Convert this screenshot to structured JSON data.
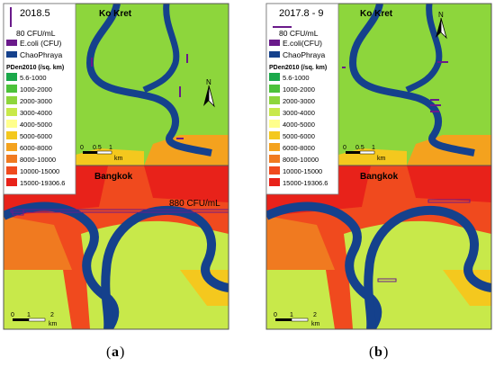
{
  "colors": {
    "c1": "#1aa84a",
    "c2": "#4cc23a",
    "c3": "#8dd63c",
    "c4": "#c8e94a",
    "c5": "#ffff8c",
    "c6": "#f4c81e",
    "c7": "#f4a21e",
    "c8": "#f07a20",
    "c9": "#f04a1e",
    "c10": "#e8221a",
    "river": "#15418c",
    "ecoli": "#6a1a8a"
  },
  "panels": [
    {
      "id": "a",
      "period": "2018.5",
      "scale_label": "80 CFU/mL",
      "legend_ecoli": "E.coli (CFU)",
      "legend_river": "ChaoPhraya",
      "legend_density_title": "PDen2010 (/sq. km)",
      "density_classes": [
        "5.6-1000",
        "1000-2000",
        "2000-3000",
        "3000-4000",
        "4000-5000",
        "5000-6000",
        "6000-8000",
        "8000-10000",
        "10000-15000",
        "15000-19306.6"
      ],
      "north_label": "N",
      "top_region": "Ko Kret",
      "bottom_region": "Bangkok",
      "annotation": "880 CFU/mL",
      "scale_top": [
        "0",
        "0.5",
        "1"
      ],
      "scale_top_unit": "km",
      "scale_bottom": [
        "0",
        "1",
        "2"
      ],
      "scale_bottom_unit": "km",
      "caption_letter": "a"
    },
    {
      "id": "b",
      "period": "2017.8 - 9",
      "scale_label": "80 CFU/mL",
      "legend_ecoli": "E.coli(CFU)",
      "legend_river": "ChaoPhraya",
      "legend_density_title": "PDen2010 (/sq. km)",
      "density_classes": [
        "5.6-1000",
        "1000-2000",
        "2000-3000",
        "3000-4000",
        "4000-5000",
        "5000-6000",
        "6000-8000",
        "8000-10000",
        "10000-15000",
        "15000-19306.6"
      ],
      "north_label": "N",
      "top_region": "Ko Kret",
      "bottom_region": "Bangkok",
      "annotation": "",
      "scale_top": [
        "0",
        "0.5",
        "1"
      ],
      "scale_top_unit": "km",
      "scale_bottom": [
        "0",
        "1",
        "2"
      ],
      "scale_bottom_unit": "km",
      "caption_letter": "b"
    }
  ]
}
